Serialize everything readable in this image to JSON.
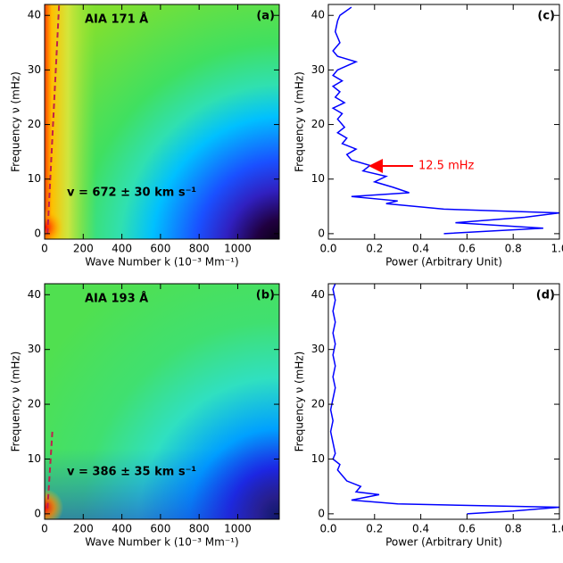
{
  "chart_data": [
    {
      "type": "heatmap",
      "label": "AIA 171 Å",
      "panel": "(a)",
      "annotation": "v = 672 ± 30 km s⁻¹",
      "x_label": "Wave Number k (10⁻³ Mm⁻¹)",
      "y_label": "Frequency ν (mHz)",
      "xlim": [
        0,
        1215
      ],
      "ylim": [
        -1,
        42
      ],
      "xticks": [
        0,
        200,
        400,
        600,
        800,
        1000
      ],
      "yticks": [
        0,
        10,
        20,
        30,
        40
      ],
      "fit": {
        "x": [
          15,
          75
        ],
        "y": [
          0,
          42
        ],
        "color": "#c0204a"
      }
    },
    {
      "type": "heatmap",
      "label": "AIA 193 Å",
      "panel": "(b)",
      "annotation": "v = 386 ± 35 km s⁻¹",
      "x_label": "Wave Number k (10⁻³ Mm⁻¹)",
      "y_label": "Frequency ν (mHz)",
      "xlim": [
        0,
        1215
      ],
      "ylim": [
        -1,
        42
      ],
      "xticks": [
        0,
        200,
        400,
        600,
        800,
        1000
      ],
      "yticks": [
        0,
        10,
        20,
        30,
        40
      ],
      "fit": {
        "x": [
          15,
          40
        ],
        "y": [
          1,
          15
        ],
        "color": "#c0204a"
      }
    },
    {
      "type": "line",
      "panel": "(c)",
      "x_label": "Power (Arbitrary Unit)",
      "y_label": "Frequency ν (mHz)",
      "annotation": "12.5 mHz",
      "annotation_color": "#ff0000",
      "color": "#0000ff",
      "xlim": [
        0,
        1.0
      ],
      "ylim": [
        -1,
        42
      ],
      "xticks": [
        {
          "value": 0,
          "label": "0.0"
        },
        0.2,
        0.4,
        0.6,
        0.8,
        {
          "value": 1,
          "label": "1.0"
        }
      ],
      "yticks": [
        0,
        10,
        20,
        30,
        40
      ],
      "x": [
        0.5,
        0.93,
        0.55,
        0.85,
        1.0,
        0.5,
        0.25,
        0.3,
        0.1,
        0.35,
        0.28,
        0.2,
        0.25,
        0.15,
        0.18,
        0.1,
        0.08,
        0.12,
        0.06,
        0.08,
        0.04,
        0.07,
        0.04,
        0.06,
        0.02,
        0.07,
        0.03,
        0.05,
        0.02,
        0.06,
        0.02,
        0.04,
        0.12,
        0.04,
        0.02,
        0.05,
        0.03,
        0.04,
        0.05,
        0.1
      ],
      "y": [
        0,
        1,
        2,
        3,
        3.8,
        4.5,
        5.5,
        6,
        6.8,
        7.5,
        8.5,
        9.5,
        10.5,
        11.5,
        12.5,
        13.5,
        14.5,
        15.5,
        16.5,
        17.5,
        18.5,
        19.5,
        21,
        22,
        23,
        24,
        25,
        26,
        27,
        28,
        29,
        30,
        31.5,
        32.5,
        33.5,
        35,
        37,
        39,
        40,
        41.5
      ]
    },
    {
      "type": "line",
      "panel": "(d)",
      "x_label": "Power (Arbitrary Unit)",
      "y_label": "Frequency ν (mHz)",
      "color": "#0000ff",
      "xlim": [
        0,
        1.0
      ],
      "ylim": [
        -1,
        42
      ],
      "xticks": [
        {
          "value": 0,
          "label": "0.0"
        },
        0.2,
        0.4,
        0.6,
        0.8,
        {
          "value": 1,
          "label": "1.0"
        }
      ],
      "yticks": [
        0,
        10,
        20,
        30,
        40
      ],
      "x": [
        0.6,
        0.8,
        1.0,
        0.3,
        0.1,
        0.22,
        0.12,
        0.14,
        0.08,
        0.06,
        0.04,
        0.05,
        0.02,
        0.03,
        0.02,
        0.01,
        0.02,
        0.01,
        0.02,
        0.03,
        0.02,
        0.03,
        0.02,
        0.03,
        0.02,
        0.03,
        0.02,
        0.03,
        0.02,
        0.03
      ],
      "y": [
        0,
        0.5,
        1.2,
        1.8,
        2.5,
        3.5,
        4,
        5,
        6,
        7,
        8,
        9,
        10,
        11,
        13,
        15,
        17,
        19,
        21,
        23,
        25,
        27,
        29,
        31,
        33,
        35,
        37,
        39,
        41,
        42
      ]
    }
  ]
}
